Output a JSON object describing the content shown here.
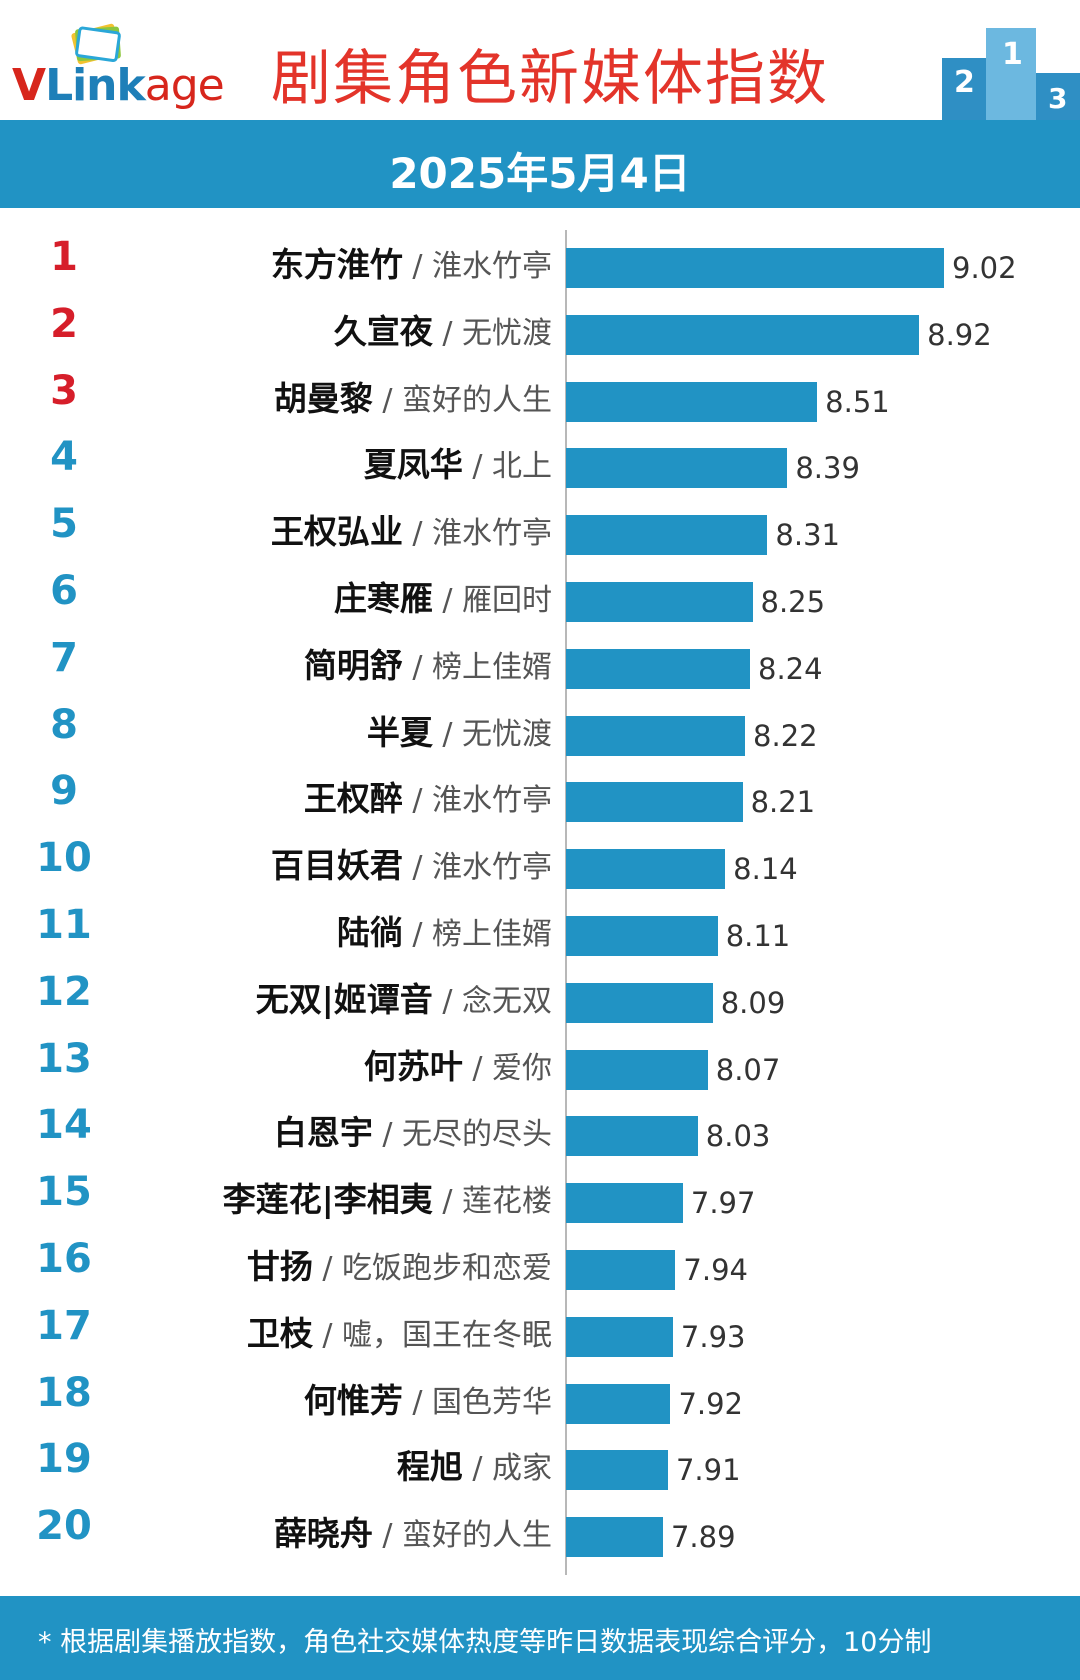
{
  "header": {
    "logo_parts": [
      "V",
      "Link",
      "age"
    ],
    "title": "剧集角色新媒体指数",
    "podium_numbers": [
      "2",
      "1",
      "3"
    ]
  },
  "date": "2025年5月4日",
  "chart_data": {
    "type": "bar",
    "orientation": "horizontal",
    "title": "剧集角色新媒体指数",
    "subtitle": "2025年5月4日",
    "xlim": [
      7.5,
      9.2
    ],
    "rows": [
      {
        "rank": "1",
        "name": "东方淮竹",
        "drama": "淮水竹亭",
        "value": 9.02
      },
      {
        "rank": "2",
        "name": "久宣夜",
        "drama": "无忧渡",
        "value": 8.92
      },
      {
        "rank": "3",
        "name": "胡曼黎",
        "drama": "蛮好的人生",
        "value": 8.51
      },
      {
        "rank": "4",
        "name": "夏凤华",
        "drama": "北上",
        "value": 8.39
      },
      {
        "rank": "5",
        "name": "王权弘业",
        "drama": "淮水竹亭",
        "value": 8.31
      },
      {
        "rank": "6",
        "name": "庄寒雁",
        "drama": "雁回时",
        "value": 8.25
      },
      {
        "rank": "7",
        "name": "简明舒",
        "drama": "榜上佳婿",
        "value": 8.24
      },
      {
        "rank": "8",
        "name": "半夏",
        "drama": "无忧渡",
        "value": 8.22
      },
      {
        "rank": "9",
        "name": "王权醉",
        "drama": "淮水竹亭",
        "value": 8.21
      },
      {
        "rank": "10",
        "name": "百目妖君",
        "drama": "淮水竹亭",
        "value": 8.14
      },
      {
        "rank": "11",
        "name": "陆徜",
        "drama": "榜上佳婿",
        "value": 8.11
      },
      {
        "rank": "12",
        "name": "无双|姬谭音",
        "drama": "念无双",
        "value": 8.09
      },
      {
        "rank": "13",
        "name": "何苏叶",
        "drama": "爱你",
        "value": 8.07
      },
      {
        "rank": "14",
        "name": "白恩宇",
        "drama": "无尽的尽头",
        "value": 8.03
      },
      {
        "rank": "15",
        "name": "李莲花|李相夷",
        "drama": "莲花楼",
        "value": 7.97
      },
      {
        "rank": "16",
        "name": "甘扬",
        "drama": "吃饭跑步和恋爱",
        "value": 7.94
      },
      {
        "rank": "17",
        "name": "卫枝",
        "drama": "嘘，国王在冬眠",
        "value": 7.93
      },
      {
        "rank": "18",
        "name": "何惟芳",
        "drama": "国色芳华",
        "value": 7.92
      },
      {
        "rank": "19",
        "name": "程旭",
        "drama": "成家",
        "value": 7.91
      },
      {
        "rank": "20",
        "name": "薛晓舟",
        "drama": "蛮好的人生",
        "value": 7.89
      }
    ],
    "colors": {
      "bar": "#2193c4",
      "top_rank": "#d61e2a",
      "rank": "#2193c4"
    },
    "top_highlight_count": 3
  },
  "footer": {
    "note": "* 根据剧集播放指数，角色社交媒体热度等昨日数据表现综合评分，10分制"
  }
}
